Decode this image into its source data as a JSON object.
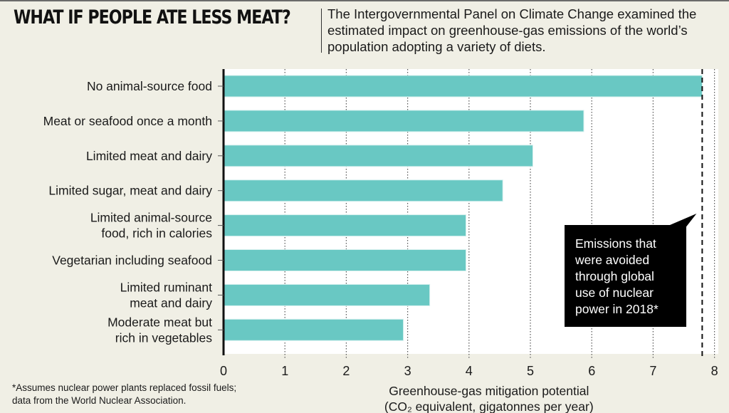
{
  "header": {
    "title": "WHAT IF PEOPLE ATE LESS MEAT?",
    "subtitle": "The Intergovernmental Panel on Climate Change examined the estimated impact on greenhouse-gas emissions of the world’s population adopting a variety of diets."
  },
  "footnote": {
    "lines": [
      "*Assumes nuclear power plants replaced fossil fuels;",
      "data from the World Nuclear Association."
    ]
  },
  "colors": {
    "background": "#f0efe5",
    "plot_background": "#ffffff",
    "bar": "#69c8c3",
    "axis": "#111111",
    "callout": "#000000"
  },
  "chart_data": {
    "type": "bar",
    "orientation": "horizontal",
    "title": "WHAT IF PEOPLE ATE LESS MEAT?",
    "categories": [
      [
        "No animal-source food"
      ],
      [
        "Meat or seafood once a month"
      ],
      [
        "Limited meat and dairy"
      ],
      [
        "Limited sugar, meat and dairy"
      ],
      [
        "Limited animal-source",
        "food, rich in calories"
      ],
      [
        "Vegetarian including seafood"
      ],
      [
        "Limited ruminant",
        "meat and dairy"
      ],
      [
        "Moderate meat but",
        "rich in vegetables"
      ]
    ],
    "values": [
      7.8,
      5.87,
      5.04,
      4.55,
      3.95,
      3.95,
      3.36,
      2.93
    ],
    "xlabel": [
      "Greenhouse-gas mitigation potential",
      "(CO₂ equivalent, gigatonnes per year)"
    ],
    "ylabel": "",
    "xlim": [
      0,
      8
    ],
    "xticks": [
      0,
      1,
      2,
      3,
      4,
      5,
      6,
      7,
      8
    ],
    "grid": "vertical dotted",
    "reference_line": {
      "value": 7.8,
      "style": "dashed",
      "annotation": [
        "Emissions that",
        "were avoided",
        "through global",
        "use of nuclear",
        "power in 2018*"
      ]
    }
  }
}
